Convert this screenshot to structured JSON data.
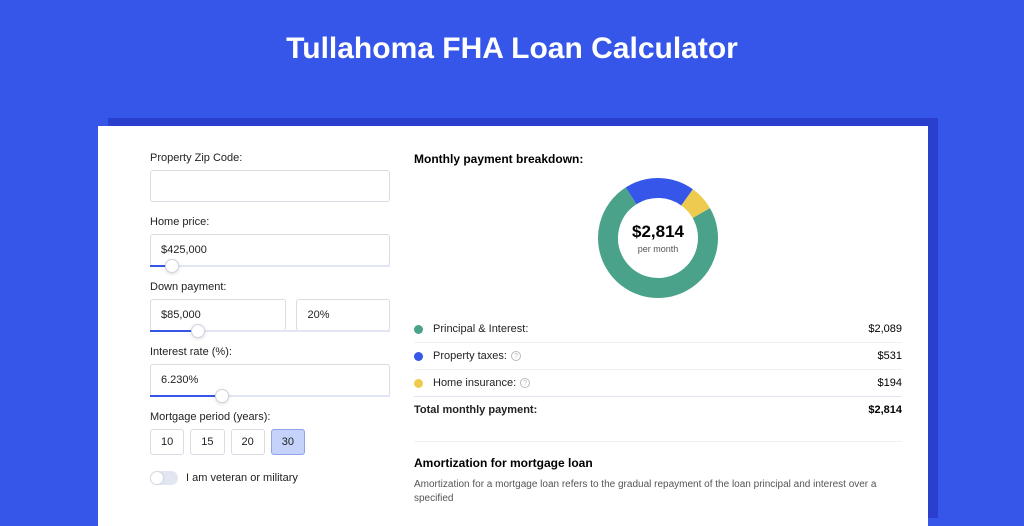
{
  "page": {
    "title": "Tullahoma FHA Loan Calculator",
    "background_color": "#3556e8"
  },
  "form": {
    "zip": {
      "label": "Property Zip Code:",
      "value": ""
    },
    "home_price": {
      "label": "Home price:",
      "value": "$425,000",
      "slider_percent": 9
    },
    "down_payment": {
      "label": "Down payment:",
      "value": "$85,000",
      "percent": "20%",
      "slider_percent": 20
    },
    "interest_rate": {
      "label": "Interest rate (%):",
      "value": "6.230%",
      "slider_percent": 30
    },
    "mortgage_period": {
      "label": "Mortgage period (years):",
      "options": [
        "10",
        "15",
        "20",
        "30"
      ],
      "selected": "30"
    },
    "veteran": {
      "label": "I am veteran or military",
      "checked": false
    }
  },
  "breakdown": {
    "section_title": "Monthly payment breakdown:",
    "donut": {
      "center_value": "$2,814",
      "center_label": "per month",
      "segments": [
        {
          "label": "Principal & Interest:",
          "value": "$2,089",
          "color": "#4aa28a",
          "arc": 267
        },
        {
          "label": "Property taxes:",
          "value": "$531",
          "color": "#3556e8",
          "arc": 68,
          "info": true
        },
        {
          "label": "Home insurance:",
          "value": "$194",
          "color": "#eecb4e",
          "arc": 25,
          "info": true
        }
      ]
    },
    "total": {
      "label": "Total monthly payment:",
      "value": "$2,814"
    }
  },
  "amortization": {
    "title": "Amortization for mortgage loan",
    "text": "Amortization for a mortgage loan refers to the gradual repayment of the loan principal and interest over a specified"
  },
  "style": {
    "colors": {
      "accent": "#3556e8",
      "background": "#ffffff",
      "border": "#d9dce3",
      "active_pill_bg": "#c5d2f9",
      "active_pill_border": "#8fa4ec",
      "divider": "#eef0f5"
    },
    "donut_stroke_width": 20,
    "donut_radius": 50
  }
}
